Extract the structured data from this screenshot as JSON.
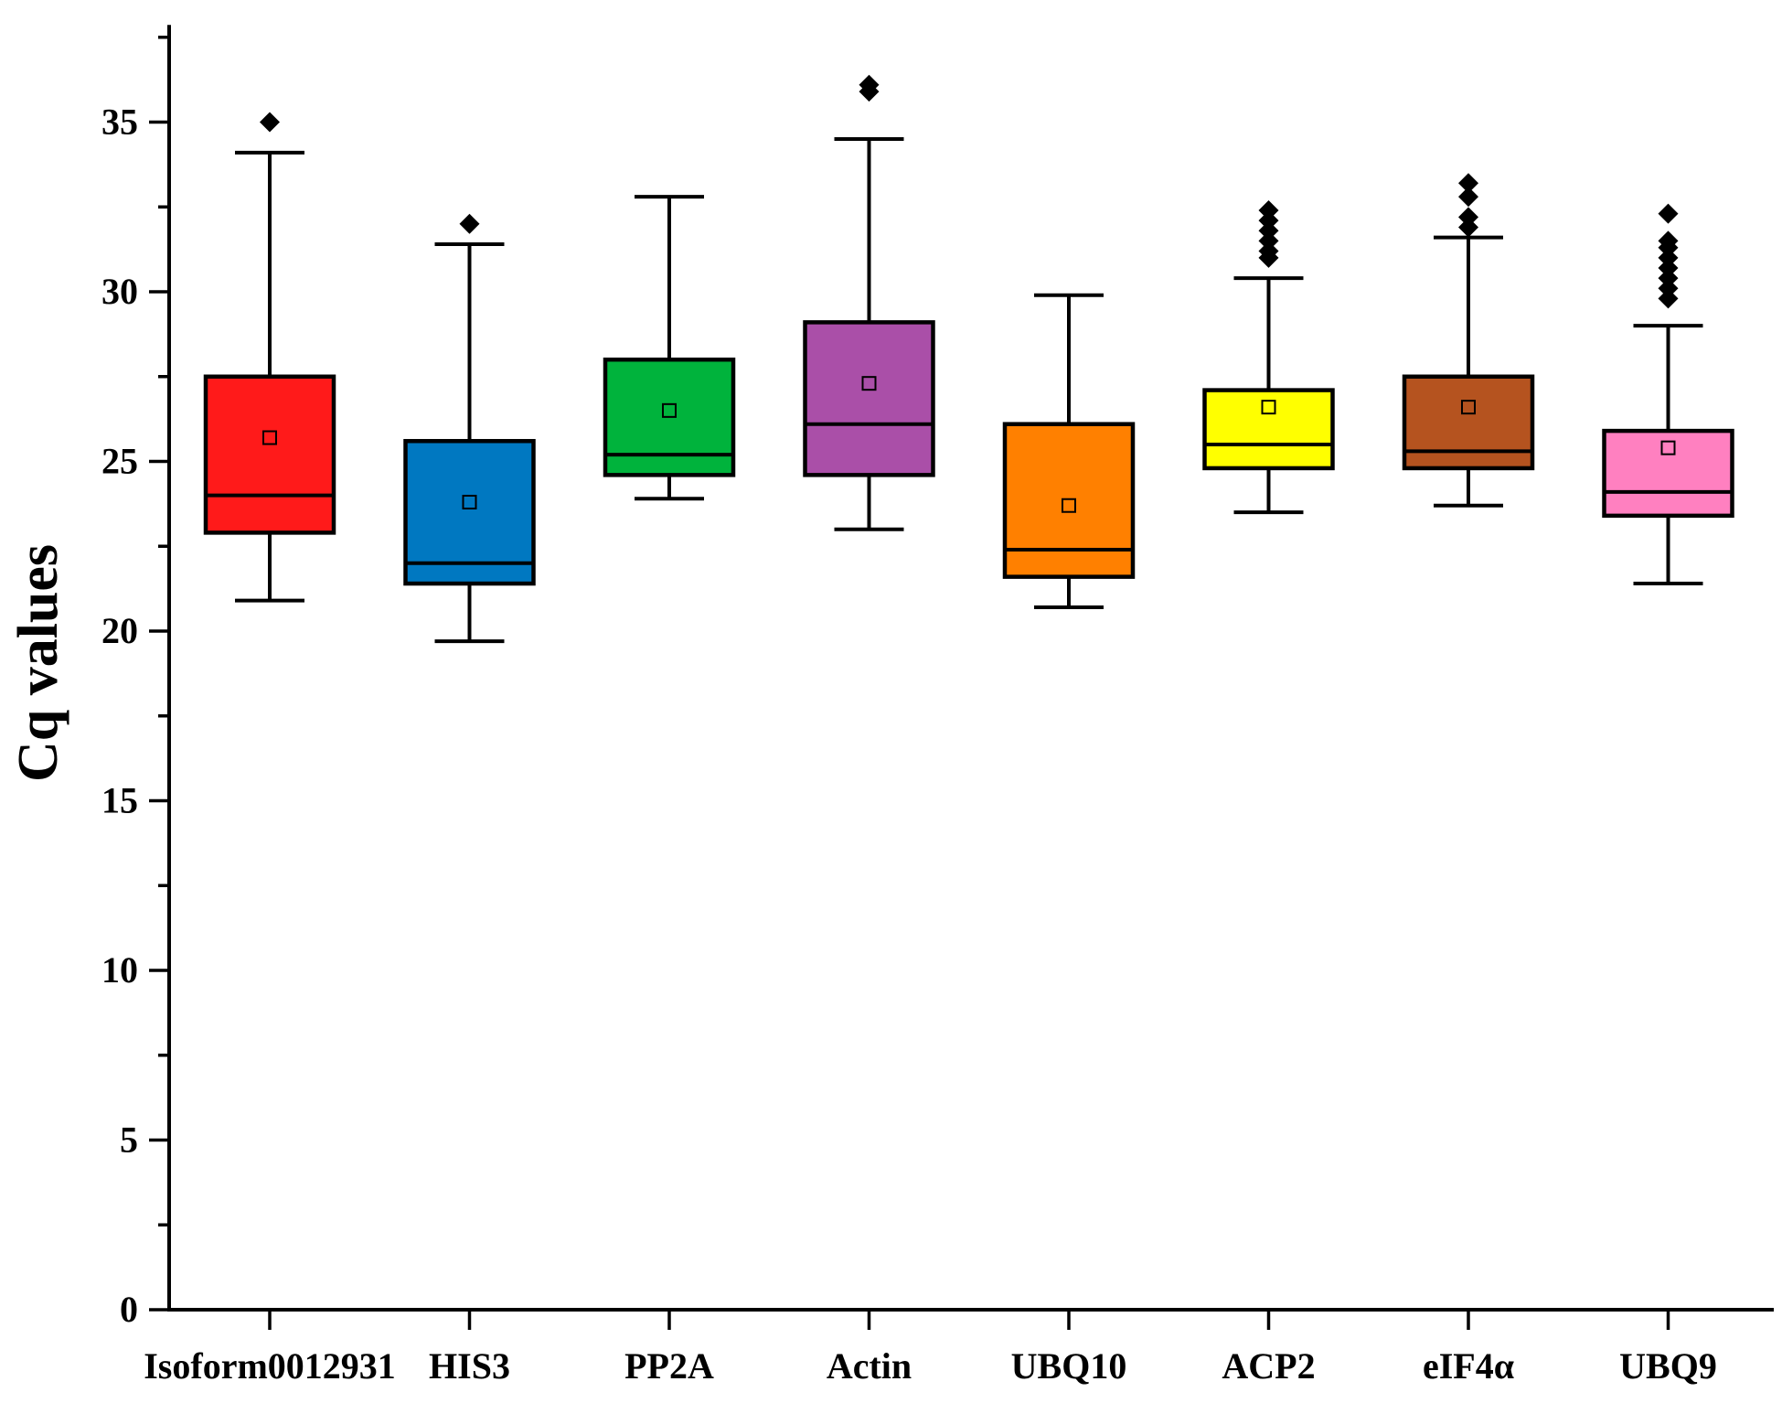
{
  "chart_data": {
    "type": "box",
    "title": "",
    "xlabel": "",
    "ylabel": "Cq values",
    "ylim": [
      0,
      38
    ],
    "yticks": [
      0,
      5,
      10,
      15,
      20,
      25,
      30,
      35
    ],
    "yticks_minor_step": 2.5,
    "grid": false,
    "legend": "none",
    "categories": [
      "Isoform0012931",
      "HIS3",
      "PP2A",
      "Actin",
      "UBQ10",
      "ACP2",
      "eIF4α",
      "UBQ9"
    ],
    "series": [
      {
        "name": "Isoform0012931",
        "color": "#ff1a1a",
        "whisker_low": 20.9,
        "q1": 22.9,
        "median": 24.0,
        "q3": 27.5,
        "whisker_high": 34.1,
        "mean": 25.7,
        "outliers": [
          35.0
        ]
      },
      {
        "name": "HIS3",
        "color": "#0078c1",
        "whisker_low": 19.7,
        "q1": 21.4,
        "median": 22.0,
        "q3": 25.6,
        "whisker_high": 31.4,
        "mean": 23.8,
        "outliers": [
          32.0
        ]
      },
      {
        "name": "PP2A",
        "color": "#00b33c",
        "whisker_low": 23.9,
        "q1": 24.6,
        "median": 25.2,
        "q3": 28.0,
        "whisker_high": 32.8,
        "mean": 26.5,
        "outliers": []
      },
      {
        "name": "Actin",
        "color": "#aa4fa8",
        "whisker_low": 23.0,
        "q1": 24.6,
        "median": 26.1,
        "q3": 29.1,
        "whisker_high": 34.5,
        "mean": 27.3,
        "outliers": [
          35.9,
          36.1
        ]
      },
      {
        "name": "UBQ10",
        "color": "#ff8000",
        "whisker_low": 20.7,
        "q1": 21.6,
        "median": 22.4,
        "q3": 26.1,
        "whisker_high": 29.9,
        "mean": 23.7,
        "outliers": []
      },
      {
        "name": "ACP2",
        "color": "#ffff00",
        "whisker_low": 23.5,
        "q1": 24.8,
        "median": 25.5,
        "q3": 27.1,
        "whisker_high": 30.4,
        "mean": 26.6,
        "outliers": [
          31.0,
          31.2,
          31.5,
          31.8,
          32.1,
          32.4
        ]
      },
      {
        "name": "eIF4α",
        "color": "#b5531f",
        "whisker_low": 23.7,
        "q1": 24.8,
        "median": 25.3,
        "q3": 27.5,
        "whisker_high": 31.6,
        "mean": 26.6,
        "outliers": [
          31.9,
          32.2,
          32.8,
          33.2
        ]
      },
      {
        "name": "UBQ9",
        "color": "#ff80c0",
        "whisker_low": 21.4,
        "q1": 23.4,
        "median": 24.1,
        "q3": 25.9,
        "whisker_high": 29.0,
        "mean": 25.4,
        "outliers": [
          29.8,
          30.1,
          30.4,
          30.7,
          31.0,
          31.3,
          31.5,
          32.3
        ]
      }
    ]
  }
}
